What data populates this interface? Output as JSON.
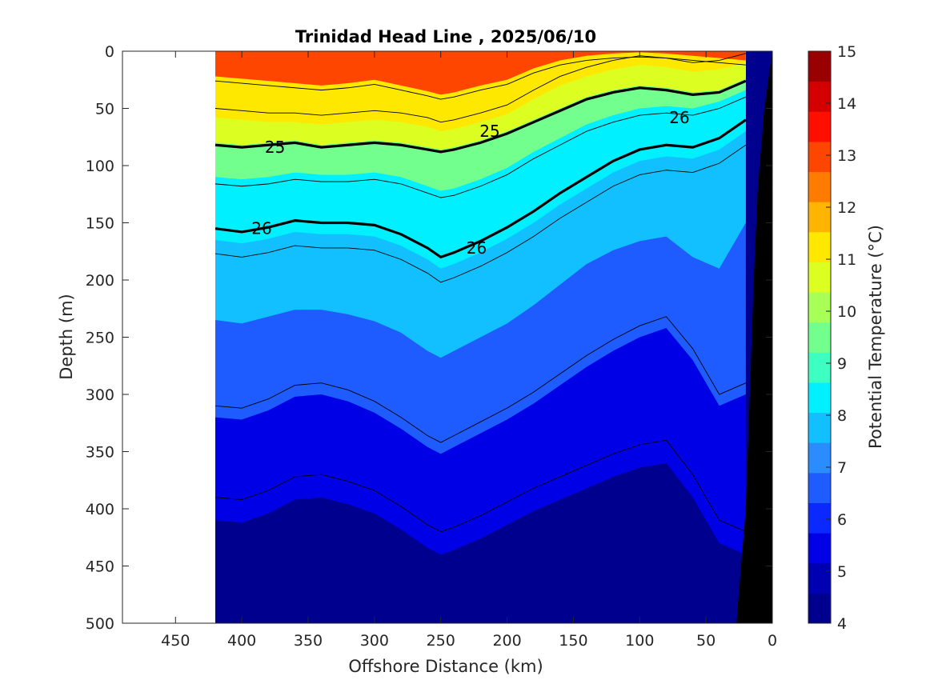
{
  "chart_data": {
    "type": "contour",
    "title": "Trinidad Head Line , 2025/06/10",
    "xlabel": "Offshore Distance (km)",
    "ylabel": "Depth (m)",
    "colorbar_label": "Potential Temperature (°C)",
    "xlim": [
      490,
      0
    ],
    "x_reversed": true,
    "ylim": [
      0,
      500
    ],
    "y_reversed": true,
    "x_ticks": [
      450,
      400,
      350,
      300,
      250,
      200,
      150,
      100,
      50,
      0
    ],
    "y_ticks": [
      0,
      50,
      100,
      150,
      200,
      250,
      300,
      350,
      400,
      450,
      500
    ],
    "colorbar_ticks": [
      4,
      5,
      6,
      7,
      8,
      9,
      10,
      11,
      12,
      13,
      14,
      15
    ],
    "colorbar_range": [
      4,
      15
    ],
    "colormap": [
      "#00008f",
      "#0000b3",
      "#0000e6",
      "#0b28ff",
      "#1f5cff",
      "#2a8cff",
      "#12c0ff",
      "#00f0ff",
      "#3dffc2",
      "#72ff8d",
      "#a8ff57",
      "#dcff21",
      "#ffe800",
      "#ffb400",
      "#ff7c00",
      "#ff4600",
      "#ff0f00",
      "#d40000",
      "#9a0000"
    ],
    "section_range_km": [
      420,
      0
    ],
    "data_min_depth": 0,
    "isotherm_depths_m": {
      "distance_km": [
        420,
        400,
        380,
        360,
        340,
        320,
        300,
        280,
        260,
        250,
        240,
        220,
        200,
        180,
        160,
        140,
        120,
        100,
        80,
        60,
        40,
        20
      ],
      "temperature_c": [
        12.5,
        11,
        10,
        9,
        8,
        7,
        6,
        5
      ],
      "depths": [
        [
          22,
          24,
          26,
          28,
          30,
          28,
          25,
          30,
          35,
          38,
          36,
          30,
          25,
          15,
          8,
          4,
          2,
          1,
          2,
          4,
          6,
          8
        ],
        [
          58,
          60,
          62,
          62,
          64,
          62,
          60,
          62,
          66,
          70,
          68,
          62,
          55,
          42,
          30,
          22,
          16,
          12,
          14,
          18,
          16,
          10
        ],
        [
          80,
          82,
          80,
          78,
          82,
          80,
          78,
          80,
          84,
          86,
          84,
          78,
          70,
          60,
          50,
          40,
          34,
          30,
          32,
          36,
          34,
          24
        ],
        [
          110,
          112,
          110,
          106,
          108,
          108,
          106,
          110,
          118,
          122,
          120,
          112,
          102,
          88,
          76,
          64,
          56,
          50,
          48,
          50,
          44,
          34
        ],
        [
          165,
          168,
          164,
          158,
          160,
          160,
          162,
          170,
          182,
          190,
          186,
          176,
          164,
          150,
          134,
          120,
          106,
          96,
          92,
          94,
          86,
          70
        ],
        [
          235,
          238,
          232,
          226,
          226,
          230,
          236,
          246,
          262,
          268,
          262,
          250,
          238,
          222,
          204,
          186,
          174,
          166,
          162,
          180,
          190,
          150
        ],
        [
          320,
          322,
          314,
          302,
          300,
          306,
          316,
          330,
          346,
          352,
          346,
          334,
          322,
          308,
          292,
          276,
          262,
          250,
          242,
          270,
          310,
          300
        ],
        [
          410,
          412,
          404,
          392,
          390,
          396,
          404,
          418,
          434,
          440,
          436,
          426,
          414,
          402,
          392,
          382,
          372,
          364,
          360,
          390,
          430,
          440
        ]
      ]
    },
    "density_contours": {
      "labeled": [
        "25",
        "26"
      ],
      "levels": [
        24.5,
        25,
        25.5,
        26,
        26.3,
        26.6,
        26.8,
        27
      ]
    },
    "bathymetry": {
      "distance_km": [
        0,
        6,
        11,
        14,
        17,
        20,
        25,
        27,
        30
      ],
      "depth_m": [
        0,
        50,
        120,
        200,
        300,
        400,
        470,
        500,
        500
      ]
    }
  }
}
